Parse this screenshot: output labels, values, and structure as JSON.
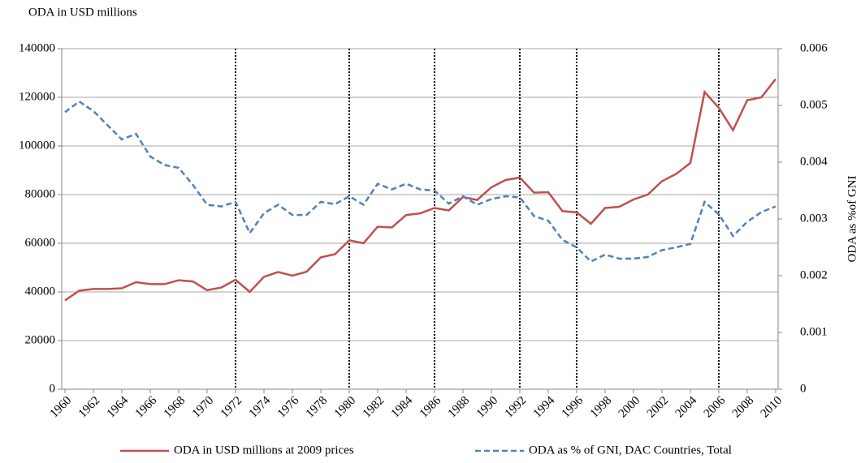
{
  "chart_data": {
    "type": "line",
    "title": "ODA in USD millions",
    "y2_label": "ODA as %of GNI",
    "x": [
      1960,
      1961,
      1962,
      1963,
      1964,
      1965,
      1966,
      1967,
      1968,
      1969,
      1970,
      1971,
      1972,
      1973,
      1974,
      1975,
      1976,
      1977,
      1978,
      1979,
      1980,
      1981,
      1982,
      1983,
      1984,
      1985,
      1986,
      1987,
      1988,
      1989,
      1990,
      1991,
      1992,
      1993,
      1994,
      1995,
      1996,
      1997,
      1998,
      1999,
      2000,
      2001,
      2002,
      2003,
      2004,
      2005,
      2006,
      2007,
      2008,
      2009,
      2010
    ],
    "xlim": [
      1960,
      2010
    ],
    "xticks": [
      1960,
      1962,
      1964,
      1966,
      1968,
      1970,
      1972,
      1974,
      1976,
      1978,
      1980,
      1982,
      1984,
      1986,
      1988,
      1990,
      1992,
      1994,
      1996,
      1998,
      2000,
      2002,
      2004,
      2006,
      2008,
      2010
    ],
    "ylim": [
      0,
      140000
    ],
    "yticks": [
      0,
      20000,
      40000,
      60000,
      80000,
      100000,
      120000,
      140000
    ],
    "y2lim": [
      0,
      0.006
    ],
    "y2ticks": [
      0,
      0.001,
      0.002,
      0.003,
      0.004,
      0.005,
      0.006
    ],
    "grid": true,
    "vlines": [
      1972,
      1980,
      1986,
      1992,
      1996,
      2006
    ],
    "series": [
      {
        "name": "ODA in USD millions at 2009 prices",
        "color": "#c0504d",
        "dash": false,
        "values": [
          36500,
          40500,
          41200,
          41200,
          41500,
          44000,
          43200,
          43200,
          44800,
          44300,
          40700,
          41800,
          45000,
          40000,
          46200,
          48200,
          46700,
          48300,
          54200,
          55500,
          61200,
          60000,
          66800,
          66500,
          71600,
          72300,
          74500,
          73500,
          79000,
          77800,
          83000,
          86000,
          87000,
          80800,
          81000,
          73200,
          72700,
          68000,
          74500,
          75000,
          78000,
          80000,
          85500,
          88500,
          93000,
          122200,
          115700,
          106500,
          118800,
          120000,
          127500
        ]
      },
      {
        "name": "ODA as % of GNI, DAC Countries, Total",
        "color": "#4f81bd",
        "dash": true,
        "axis": "y2",
        "values": [
          0.00488,
          0.00507,
          0.0049,
          0.00465,
          0.0044,
          0.0045,
          0.0041,
          0.00395,
          0.0039,
          0.0036,
          0.00325,
          0.00322,
          0.0033,
          0.00275,
          0.0031,
          0.00325,
          0.00307,
          0.00307,
          0.0033,
          0.00326,
          0.0034,
          0.00325,
          0.00362,
          0.00352,
          0.00362,
          0.00352,
          0.0035,
          0.00327,
          0.0034,
          0.00325,
          0.00335,
          0.0034,
          0.00338,
          0.00305,
          0.00297,
          0.00263,
          0.0025,
          0.00225,
          0.00237,
          0.0023,
          0.0023,
          0.00233,
          0.00245,
          0.0025,
          0.00256,
          0.0033,
          0.00308,
          0.0027,
          0.00295,
          0.00312,
          0.00322
        ]
      }
    ]
  }
}
